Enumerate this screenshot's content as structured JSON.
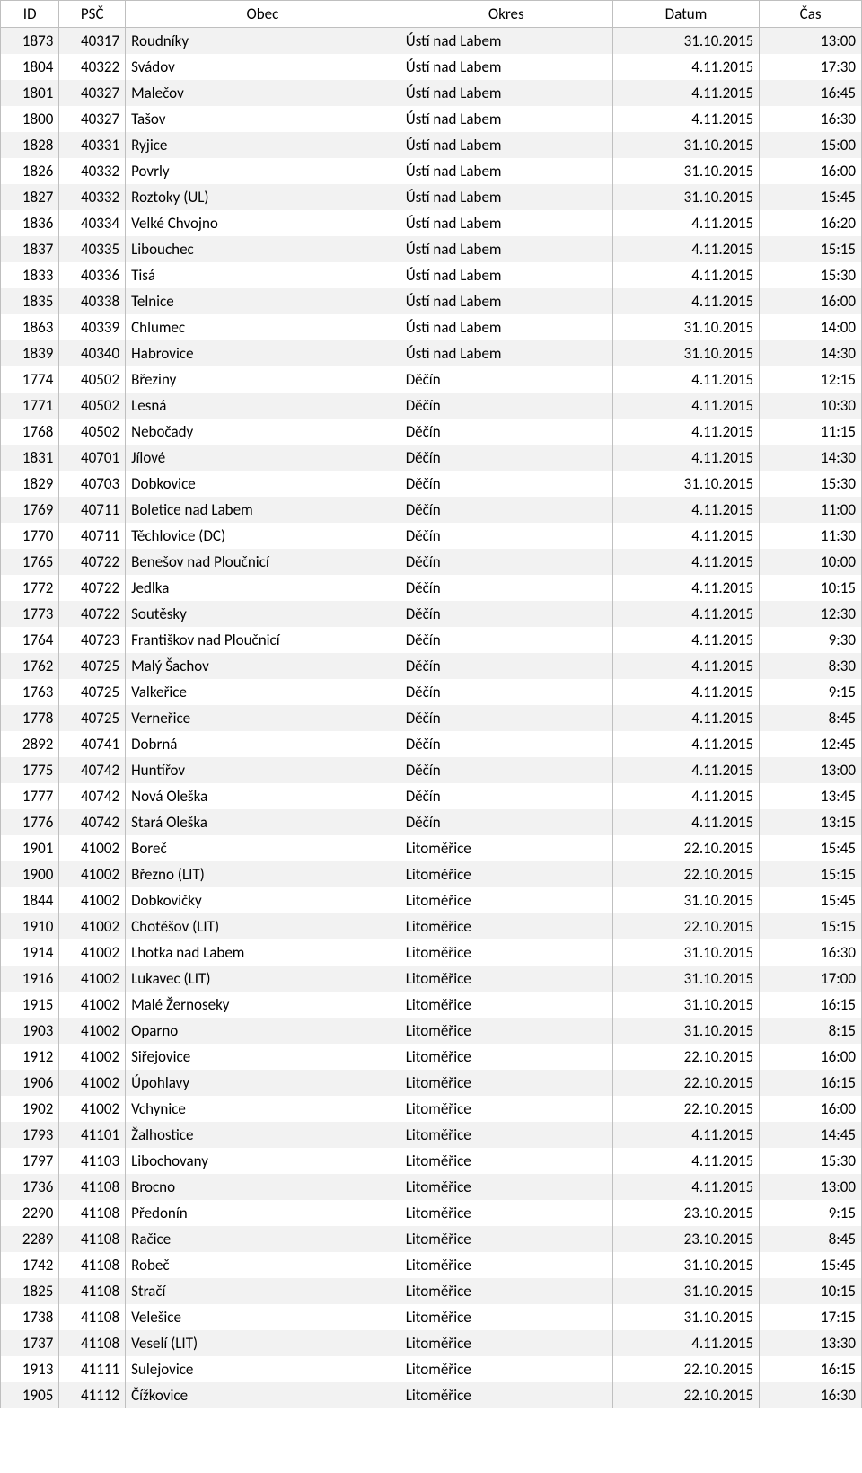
{
  "table": {
    "columns": [
      "ID",
      "PSČ",
      "Obec",
      "Okres",
      "Datum",
      "Čas"
    ],
    "column_classes": [
      "col-id",
      "col-psc",
      "col-obec",
      "col-okres",
      "col-datum",
      "col-cas"
    ],
    "header_bg": "#ffffff",
    "odd_row_bg": "#f2f2f2",
    "even_row_bg": "#ffffff",
    "border_color": "#bfbfbf",
    "font_family": "Calibri",
    "font_size_pt": 13,
    "rows": [
      [
        "1873",
        "40317",
        "Roudníky",
        "Ústí nad Labem",
        "31.10.2015",
        "13:00"
      ],
      [
        "1804",
        "40322",
        "Svádov",
        "Ústí nad Labem",
        "4.11.2015",
        "17:30"
      ],
      [
        "1801",
        "40327",
        "Malečov",
        "Ústí nad Labem",
        "4.11.2015",
        "16:45"
      ],
      [
        "1800",
        "40327",
        "Tašov",
        "Ústí nad Labem",
        "4.11.2015",
        "16:30"
      ],
      [
        "1828",
        "40331",
        "Ryjice",
        "Ústí nad Labem",
        "31.10.2015",
        "15:00"
      ],
      [
        "1826",
        "40332",
        "Povrly",
        "Ústí nad Labem",
        "31.10.2015",
        "16:00"
      ],
      [
        "1827",
        "40332",
        "Roztoky (UL)",
        "Ústí nad Labem",
        "31.10.2015",
        "15:45"
      ],
      [
        "1836",
        "40334",
        "Velké Chvojno",
        "Ústí nad Labem",
        "4.11.2015",
        "16:20"
      ],
      [
        "1837",
        "40335",
        "Libouchec",
        "Ústí nad Labem",
        "4.11.2015",
        "15:15"
      ],
      [
        "1833",
        "40336",
        "Tisá",
        "Ústí nad Labem",
        "4.11.2015",
        "15:30"
      ],
      [
        "1835",
        "40338",
        "Telnice",
        "Ústí nad Labem",
        "4.11.2015",
        "16:00"
      ],
      [
        "1863",
        "40339",
        "Chlumec",
        "Ústí nad Labem",
        "31.10.2015",
        "14:00"
      ],
      [
        "1839",
        "40340",
        "Habrovice",
        "Ústí nad Labem",
        "31.10.2015",
        "14:30"
      ],
      [
        "1774",
        "40502",
        "Březiny",
        "Děčín",
        "4.11.2015",
        "12:15"
      ],
      [
        "1771",
        "40502",
        "Lesná",
        "Děčín",
        "4.11.2015",
        "10:30"
      ],
      [
        "1768",
        "40502",
        "Nebočady",
        "Děčín",
        "4.11.2015",
        "11:15"
      ],
      [
        "1831",
        "40701",
        "Jílové",
        "Děčín",
        "4.11.2015",
        "14:30"
      ],
      [
        "1829",
        "40703",
        "Dobkovice",
        "Děčín",
        "31.10.2015",
        "15:30"
      ],
      [
        "1769",
        "40711",
        "Boletice nad Labem",
        "Děčín",
        "4.11.2015",
        "11:00"
      ],
      [
        "1770",
        "40711",
        "Těchlovice (DC)",
        "Děčín",
        "4.11.2015",
        "11:30"
      ],
      [
        "1765",
        "40722",
        "Benešov nad Ploučnicí",
        "Děčín",
        "4.11.2015",
        "10:00"
      ],
      [
        "1772",
        "40722",
        "Jedlka",
        "Děčín",
        "4.11.2015",
        "10:15"
      ],
      [
        "1773",
        "40722",
        "Soutěsky",
        "Děčín",
        "4.11.2015",
        "12:30"
      ],
      [
        "1764",
        "40723",
        "Františkov nad Ploučnicí",
        "Děčín",
        "4.11.2015",
        "9:30"
      ],
      [
        "1762",
        "40725",
        "Malý Šachov",
        "Děčín",
        "4.11.2015",
        "8:30"
      ],
      [
        "1763",
        "40725",
        "Valkeřice",
        "Děčín",
        "4.11.2015",
        "9:15"
      ],
      [
        "1778",
        "40725",
        "Verneřice",
        "Děčín",
        "4.11.2015",
        "8:45"
      ],
      [
        "2892",
        "40741",
        "Dobrná",
        "Děčín",
        "4.11.2015",
        "12:45"
      ],
      [
        "1775",
        "40742",
        "Huntířov",
        "Děčín",
        "4.11.2015",
        "13:00"
      ],
      [
        "1777",
        "40742",
        "Nová Oleška",
        "Děčín",
        "4.11.2015",
        "13:45"
      ],
      [
        "1776",
        "40742",
        "Stará Oleška",
        "Děčín",
        "4.11.2015",
        "13:15"
      ],
      [
        "1901",
        "41002",
        "Boreč",
        "Litoměřice",
        "22.10.2015",
        "15:45"
      ],
      [
        "1900",
        "41002",
        "Březno (LIT)",
        "Litoměřice",
        "22.10.2015",
        "15:15"
      ],
      [
        "1844",
        "41002",
        "Dobkovičky",
        "Litoměřice",
        "31.10.2015",
        "15:45"
      ],
      [
        "1910",
        "41002",
        "Chotěšov (LIT)",
        "Litoměřice",
        "22.10.2015",
        "15:15"
      ],
      [
        "1914",
        "41002",
        "Lhotka nad Labem",
        "Litoměřice",
        "31.10.2015",
        "16:30"
      ],
      [
        "1916",
        "41002",
        "Lukavec (LIT)",
        "Litoměřice",
        "31.10.2015",
        "17:00"
      ],
      [
        "1915",
        "41002",
        "Malé Žernoseky",
        "Litoměřice",
        "31.10.2015",
        "16:15"
      ],
      [
        "1903",
        "41002",
        "Oparno",
        "Litoměřice",
        "31.10.2015",
        "8:15"
      ],
      [
        "1912",
        "41002",
        "Siřejovice",
        "Litoměřice",
        "22.10.2015",
        "16:00"
      ],
      [
        "1906",
        "41002",
        "Úpohlavy",
        "Litoměřice",
        "22.10.2015",
        "16:15"
      ],
      [
        "1902",
        "41002",
        "Vchynice",
        "Litoměřice",
        "22.10.2015",
        "16:00"
      ],
      [
        "1793",
        "41101",
        "Žalhostice",
        "Litoměřice",
        "4.11.2015",
        "14:45"
      ],
      [
        "1797",
        "41103",
        "Libochovany",
        "Litoměřice",
        "4.11.2015",
        "15:30"
      ],
      [
        "1736",
        "41108",
        "Brocno",
        "Litoměřice",
        "4.11.2015",
        "13:00"
      ],
      [
        "2290",
        "41108",
        "Předonín",
        "Litoměřice",
        "23.10.2015",
        "9:15"
      ],
      [
        "2289",
        "41108",
        "Račice",
        "Litoměřice",
        "23.10.2015",
        "8:45"
      ],
      [
        "1742",
        "41108",
        "Robeč",
        "Litoměřice",
        "31.10.2015",
        "15:45"
      ],
      [
        "1825",
        "41108",
        "Stračí",
        "Litoměřice",
        "31.10.2015",
        "10:15"
      ],
      [
        "1738",
        "41108",
        "Velešice",
        "Litoměřice",
        "31.10.2015",
        "17:15"
      ],
      [
        "1737",
        "41108",
        "Veselí (LIT)",
        "Litoměřice",
        "4.11.2015",
        "13:30"
      ],
      [
        "1913",
        "41111",
        "Sulejovice",
        "Litoměřice",
        "22.10.2015",
        "16:15"
      ],
      [
        "1905",
        "41112",
        "Čížkovice",
        "Litoměřice",
        "22.10.2015",
        "16:30"
      ]
    ]
  }
}
